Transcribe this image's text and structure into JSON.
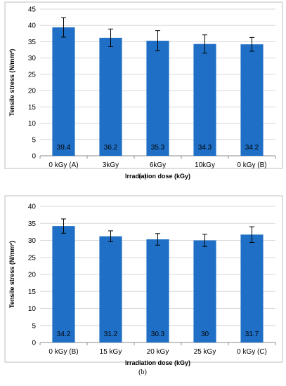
{
  "chart_data": [
    {
      "type": "bar",
      "caption": "(a)",
      "categories": [
        "0 kGy (A)",
        "3kGy",
        "6kGy",
        "10kGy",
        "0 kGy (B)"
      ],
      "values": [
        39.4,
        36.2,
        35.3,
        34.3,
        34.2
      ],
      "errors": [
        3.0,
        2.7,
        3.1,
        2.8,
        2.1
      ],
      "data_labels": [
        "39.4",
        "36.2",
        "35.3",
        "34.3",
        "34.2"
      ],
      "xlabel": "Irradiation dose (kGy)",
      "ylabel": "Tensile stress (N/mm²)",
      "ylim": [
        0,
        45
      ],
      "yticks": [
        0,
        5,
        10,
        15,
        20,
        25,
        30,
        35,
        40,
        45
      ],
      "grid": true,
      "bar_color": "#1f6fc6"
    },
    {
      "type": "bar",
      "caption": "(b)",
      "categories": [
        "0 kGy (B)",
        "15 kGy",
        "20 kGy",
        "25 kGy",
        "0 kGy (C)"
      ],
      "values": [
        34.2,
        31.2,
        30.3,
        30,
        31.7
      ],
      "errors": [
        2.1,
        1.6,
        1.7,
        1.8,
        2.3
      ],
      "data_labels": [
        "34.2",
        "31.2",
        "30.3",
        "30",
        "31.7"
      ],
      "xlabel": "Irradiation dose (kGy)",
      "ylabel": "Tensile stress (N/mm²)",
      "ylim": [
        0,
        40
      ],
      "yticks": [
        0,
        5,
        10,
        15,
        20,
        25,
        30,
        35,
        40
      ],
      "grid": true,
      "bar_color": "#1f6fc6"
    }
  ]
}
